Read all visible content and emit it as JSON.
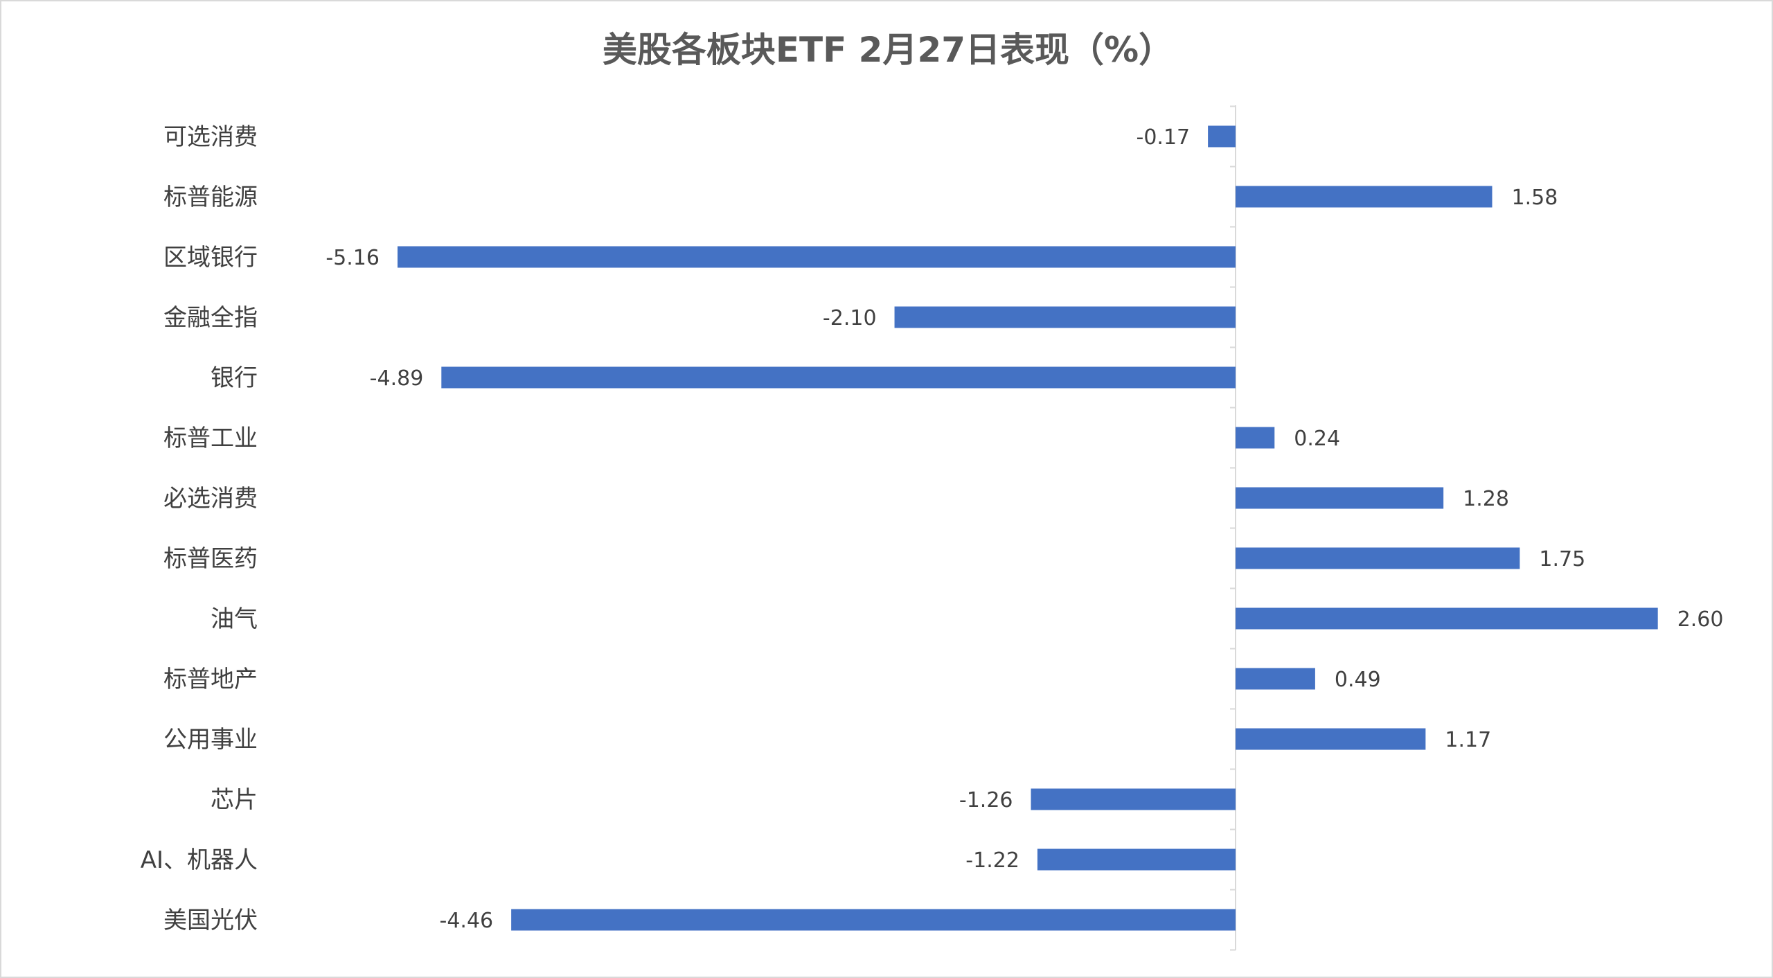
{
  "chart_data": {
    "type": "bar",
    "orientation": "horizontal",
    "title": "美股各板块ETF  2月27日表现（%）",
    "xlabel": "",
    "ylabel": "",
    "xlim": [
      -5.16,
      2.6
    ],
    "grid": false,
    "legend": "none",
    "bar_color": "#4472C4",
    "axis_color": "#d9d9d9",
    "categories": [
      "可选消费",
      "标普能源",
      "区域银行",
      "金融全指",
      "银行",
      "标普工业",
      "必选消费",
      "标普医药",
      "油气",
      "标普地产",
      "公用事业",
      "芯片",
      "AI、机器人",
      "美国光伏"
    ],
    "values": [
      -0.17,
      1.58,
      -5.16,
      -2.1,
      -4.89,
      0.24,
      1.28,
      1.75,
      2.6,
      0.49,
      1.17,
      -1.26,
      -1.22,
      -4.46
    ],
    "data_labels": [
      "-0.17",
      "1.58",
      "-5.16",
      "-2.10",
      "-4.89",
      "0.24",
      "1.28",
      "1.75",
      "2.60",
      "0.49",
      "1.17",
      "-1.26",
      "-1.22",
      "-4.46"
    ]
  }
}
